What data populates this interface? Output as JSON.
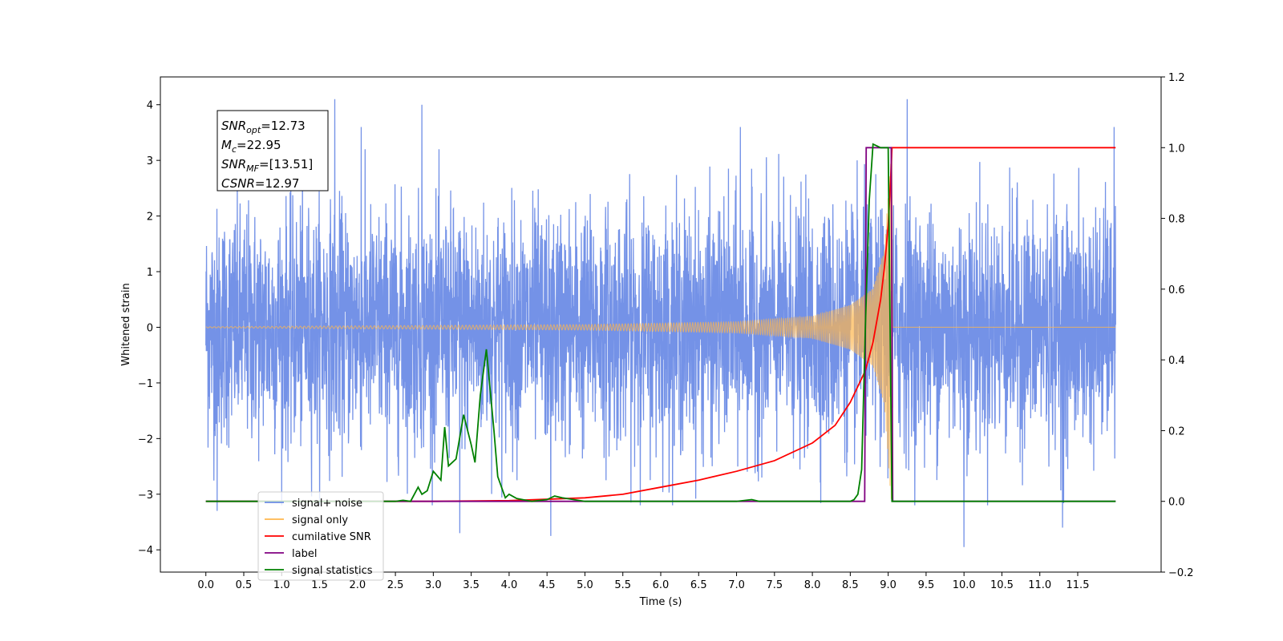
{
  "chart_data": {
    "type": "line",
    "title": "",
    "xlabel": "Time (s)",
    "ylabel_left": "Whitened strain",
    "ylabel_right": "",
    "xlim": [
      -0.6,
      12.6
    ],
    "ylim_left": [
      -4.4,
      4.5
    ],
    "ylim_right": [
      -0.2,
      1.2
    ],
    "x_ticks": [
      0.0,
      0.5,
      1.0,
      1.5,
      2.0,
      2.5,
      3.0,
      3.5,
      4.0,
      4.5,
      5.0,
      5.5,
      6.0,
      6.5,
      7.0,
      7.5,
      8.0,
      8.5,
      9.0,
      9.5,
      10.0,
      10.5,
      11.0,
      11.5
    ],
    "x_tick_labels": [
      "0.0",
      "0.5",
      "1.0",
      "1.5",
      "2.0",
      "2.5",
      "3.0",
      "3.5",
      "4.0",
      "4.5",
      "5.0",
      "5.5",
      "6.0",
      "6.5",
      "7.0",
      "7.5",
      "8.0",
      "8.5",
      "9.0",
      "9.5",
      "10.0",
      "10.5",
      "11.0",
      "11.5"
    ],
    "y_ticks_left": [
      -4,
      -3,
      -2,
      -1,
      0,
      1,
      2,
      3,
      4
    ],
    "y_tick_labels_left": [
      "−4",
      "−3",
      "−2",
      "−1",
      "0",
      "1",
      "2",
      "3",
      "4"
    ],
    "y_ticks_right": [
      -0.2,
      0.0,
      0.2,
      0.4,
      0.6,
      0.8,
      1.0,
      1.2
    ],
    "y_tick_labels_right": [
      "−0.2",
      "0.0",
      "0.2",
      "0.4",
      "0.6",
      "0.8",
      "1.0",
      "1.2"
    ],
    "grid": false,
    "legend_position": "lower-left",
    "legend": [
      {
        "label": "signal+ noise",
        "color": "#6d8ce6"
      },
      {
        "label": "signal only",
        "color": "#ffb74d"
      },
      {
        "label": "cumilative SNR",
        "color": "#ff0000"
      },
      {
        "label": "label",
        "color": "#800080"
      },
      {
        "label": "signal statistics",
        "color": "#008000"
      }
    ],
    "annotation_lines": [
      {
        "base": "SNR",
        "sub": "opt",
        "value": "=12.73"
      },
      {
        "base": "M",
        "sub": "c",
        "value": "=22.95"
      },
      {
        "base": "SNR",
        "sub": "MF",
        "value": "=[13.51]"
      },
      {
        "base": "CSNR",
        "sub": "",
        "value": "=12.97"
      }
    ],
    "series": [
      {
        "name": "signal+ noise",
        "axis": "left",
        "kind": "noise",
        "x_range": [
          0.0,
          12.0
        ],
        "std": 1.0,
        "extremes": [
          {
            "x": 1.7,
            "y": 4.1
          },
          {
            "x": 2.85,
            "y": 4.0
          },
          {
            "x": 9.25,
            "y": 4.1
          },
          {
            "x": 11.98,
            "y": 3.6
          },
          {
            "x": 4.55,
            "y": -3.75
          },
          {
            "x": 10.0,
            "y": -3.95
          },
          {
            "x": 3.35,
            "y": -3.7
          },
          {
            "x": 11.3,
            "y": -3.6
          },
          {
            "x": 0.15,
            "y": -3.3
          },
          {
            "x": 2.05,
            "y": 3.6
          },
          {
            "x": 7.05,
            "y": 3.6
          }
        ]
      },
      {
        "name": "signal only",
        "axis": "left",
        "kind": "chirp",
        "x_range": [
          0.0,
          12.0
        ],
        "merger_x": 9.05,
        "amplitude_points": [
          [
            0.0,
            0.01
          ],
          [
            5.0,
            0.05
          ],
          [
            7.0,
            0.1
          ],
          [
            8.0,
            0.2
          ],
          [
            8.5,
            0.4
          ],
          [
            8.8,
            0.7
          ],
          [
            8.95,
            1.4
          ],
          [
            9.03,
            3.0
          ],
          [
            9.05,
            3.2
          ],
          [
            9.06,
            0.0
          ],
          [
            12.0,
            0.0
          ]
        ]
      },
      {
        "name": "cumilative SNR",
        "axis": "right",
        "points": [
          [
            0.0,
            0.0
          ],
          [
            3.0,
            0.0
          ],
          [
            4.0,
            0.002
          ],
          [
            5.0,
            0.01
          ],
          [
            5.5,
            0.02
          ],
          [
            6.0,
            0.04
          ],
          [
            6.5,
            0.06
          ],
          [
            7.0,
            0.085
          ],
          [
            7.5,
            0.115
          ],
          [
            8.0,
            0.165
          ],
          [
            8.3,
            0.215
          ],
          [
            8.5,
            0.28
          ],
          [
            8.7,
            0.37
          ],
          [
            8.8,
            0.45
          ],
          [
            8.9,
            0.57
          ],
          [
            8.95,
            0.66
          ],
          [
            9.0,
            0.78
          ],
          [
            9.03,
            0.9
          ],
          [
            9.05,
            1.0
          ],
          [
            12.0,
            1.0
          ]
        ]
      },
      {
        "name": "label",
        "axis": "right",
        "points": [
          [
            0.0,
            0.0
          ],
          [
            8.69,
            0.0
          ],
          [
            8.71,
            1.0
          ],
          [
            9.04,
            1.0
          ],
          [
            9.06,
            0.0
          ],
          [
            12.0,
            0.0
          ]
        ]
      },
      {
        "name": "signal statistics",
        "axis": "right",
        "points": [
          [
            0.0,
            0.0
          ],
          [
            2.5,
            0.0
          ],
          [
            2.6,
            0.003
          ],
          [
            2.7,
            0.0
          ],
          [
            2.8,
            0.04
          ],
          [
            2.85,
            0.02
          ],
          [
            2.92,
            0.03
          ],
          [
            3.0,
            0.085
          ],
          [
            3.1,
            0.06
          ],
          [
            3.15,
            0.21
          ],
          [
            3.2,
            0.1
          ],
          [
            3.3,
            0.12
          ],
          [
            3.4,
            0.245
          ],
          [
            3.5,
            0.16
          ],
          [
            3.55,
            0.11
          ],
          [
            3.62,
            0.3
          ],
          [
            3.7,
            0.43
          ],
          [
            3.8,
            0.2
          ],
          [
            3.85,
            0.07
          ],
          [
            3.95,
            0.01
          ],
          [
            4.0,
            0.02
          ],
          [
            4.1,
            0.008
          ],
          [
            4.3,
            0.0
          ],
          [
            4.5,
            0.005
          ],
          [
            4.6,
            0.015
          ],
          [
            4.7,
            0.01
          ],
          [
            5.0,
            0.0
          ],
          [
            7.0,
            0.0
          ],
          [
            7.2,
            0.005
          ],
          [
            7.3,
            0.0
          ],
          [
            8.5,
            0.0
          ],
          [
            8.55,
            0.005
          ],
          [
            8.6,
            0.02
          ],
          [
            8.65,
            0.09
          ],
          [
            8.7,
            0.5
          ],
          [
            8.75,
            0.85
          ],
          [
            8.8,
            1.01
          ],
          [
            8.9,
            1.0
          ],
          [
            9.0,
            1.0
          ],
          [
            9.05,
            0.0
          ],
          [
            9.1,
            0.0
          ],
          [
            12.0,
            0.0
          ]
        ]
      }
    ]
  }
}
